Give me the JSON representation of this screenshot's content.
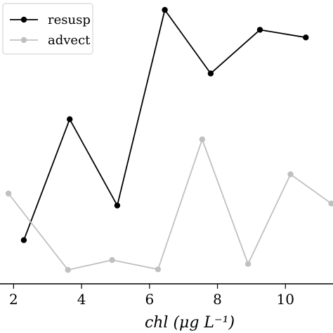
{
  "chart_data": {
    "type": "line",
    "xlabel": "chl (μg L⁻¹)",
    "xlim": [
      1.6,
      11.4
    ],
    "ylim": [
      0,
      100
    ],
    "xticks": [
      "2",
      "4",
      "6",
      "8",
      "10"
    ],
    "grid": false,
    "legend_position": "top-left",
    "series": [
      {
        "name": "resusp",
        "color": "#000000",
        "points": [
          {
            "x": 2.3,
            "y": 15.4
          },
          {
            "x": 3.65,
            "y": 58.0
          },
          {
            "x": 5.05,
            "y": 27.6
          },
          {
            "x": 6.45,
            "y": 96.5
          },
          {
            "x": 7.8,
            "y": 74.1
          },
          {
            "x": 9.25,
            "y": 89.5
          },
          {
            "x": 10.6,
            "y": 86.8
          }
        ]
      },
      {
        "name": "advect",
        "color": "#c0c0c0",
        "points": [
          {
            "x": 1.85,
            "y": 31.8
          },
          {
            "x": 3.6,
            "y": 4.9
          },
          {
            "x": 4.9,
            "y": 8.4
          },
          {
            "x": 6.25,
            "y": 5.1
          },
          {
            "x": 7.55,
            "y": 50.9
          },
          {
            "x": 8.9,
            "y": 7.0
          },
          {
            "x": 10.15,
            "y": 38.6
          },
          {
            "x": 11.35,
            "y": 28.3
          }
        ]
      }
    ]
  }
}
